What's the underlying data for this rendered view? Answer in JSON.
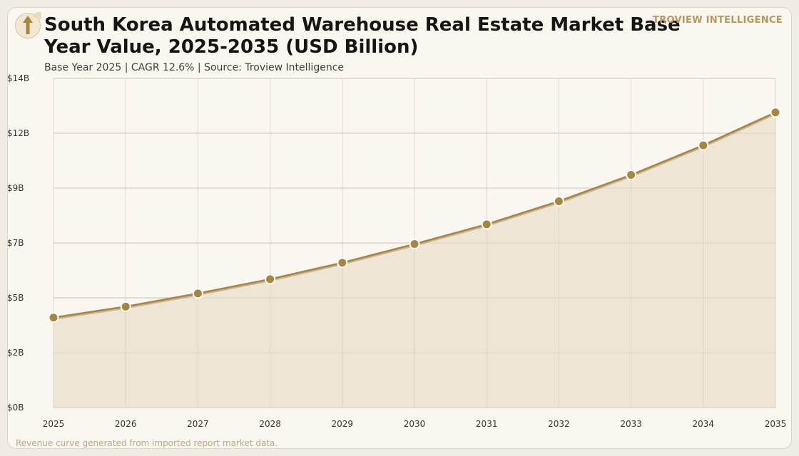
{
  "header": {
    "title": "South Korea Automated Warehouse Real Estate Market Base Year Value, 2025-2035 (USD Billion)",
    "subtitle": "Base Year 2025 | CAGR 12.6% | Source: Troview Intelligence",
    "brand": "TROVIEW INTELLIGENCE"
  },
  "footer": {
    "note": "Revenue curve generated from imported report market data."
  },
  "colors": {
    "line": "#a8843c",
    "area": "#ede4d3",
    "marker": "#a8843c",
    "grid": "#c9c3b8"
  },
  "chart_data": {
    "type": "area",
    "x": [
      "2025",
      "2026",
      "2027",
      "2028",
      "2029",
      "2030",
      "2031",
      "2032",
      "2033",
      "2034",
      "2035"
    ],
    "values": [
      4.1,
      4.6,
      5.2,
      5.85,
      6.6,
      7.45,
      8.35,
      9.4,
      10.6,
      11.95,
      13.45
    ],
    "y_tick_labels": [
      "$0B",
      "$2B",
      "$5B",
      "$7B",
      "$9B",
      "$12B",
      "$14B"
    ],
    "ylim": [
      0,
      15
    ],
    "grid": true,
    "markers": true
  }
}
